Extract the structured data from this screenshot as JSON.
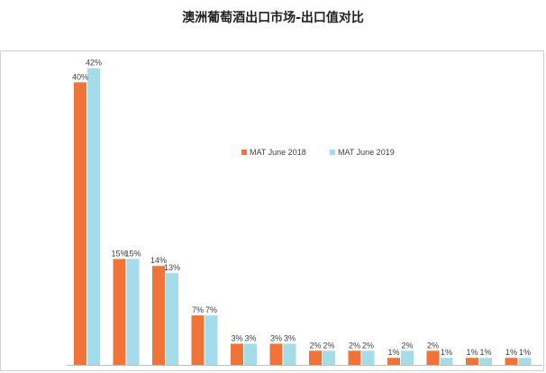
{
  "chart_data": {
    "type": "bar",
    "title": "澳洲葡萄酒出口市场-出口值对比",
    "xlabel": "",
    "ylabel": "",
    "ylim": [
      0,
      45
    ],
    "grid": false,
    "legend_position": "right",
    "value_suffix": "%",
    "categories": [
      "",
      "",
      "",
      "",
      "",
      "",
      "",
      "",
      "",
      "",
      "",
      ""
    ],
    "series": [
      {
        "name": "MAT June 2018",
        "color": "#f07437",
        "values": [
          40,
          15,
          14,
          7,
          3,
          3,
          2,
          2,
          1,
          2,
          1,
          1
        ]
      },
      {
        "name": "MAT June 2019",
        "color": "#a5dcea",
        "values": [
          42,
          15,
          13,
          7,
          3,
          3,
          2,
          2,
          2,
          1,
          1,
          1
        ]
      }
    ]
  }
}
